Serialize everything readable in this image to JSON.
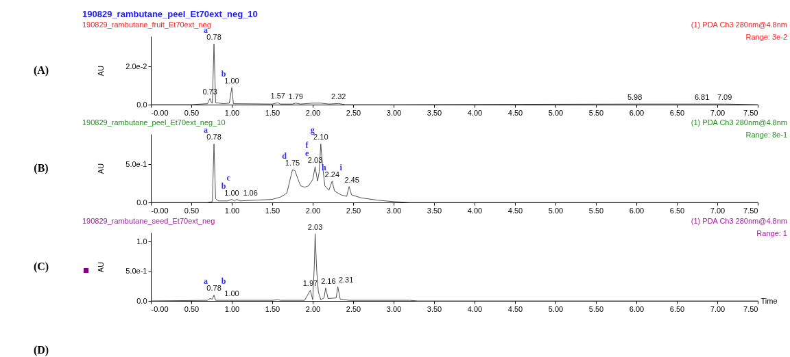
{
  "chart_data": [
    {
      "type": "line",
      "title": "190829_rambutane_peel_Et70ext_neg_10",
      "subtitle": "190829_rambutane_fruit_Et70ext_neg",
      "ylabel": "AU",
      "color": "#505050",
      "x": [
        0,
        0.5,
        0.7,
        0.73,
        0.75,
        0.76,
        0.78,
        0.8,
        0.9,
        0.97,
        1.0,
        1.02,
        1.5,
        1.57,
        1.6,
        1.75,
        1.79,
        1.85,
        2.0,
        2.1,
        2.2,
        2.32,
        2.4,
        3.0,
        5.98,
        6.81,
        7.09,
        7.5
      ],
      "values": [
        0,
        0,
        0.0005,
        0.0033,
        0.001,
        0.0008,
        0.032,
        0.001,
        0.0005,
        0.0008,
        0.009,
        0.0005,
        0.0003,
        0.001,
        0.0003,
        0.0003,
        0.0008,
        0.0003,
        0.0008,
        0.0008,
        0.0003,
        0.0006,
        0,
        0,
        0.0003,
        0.0003,
        0.0003,
        0
      ],
      "xlim": [
        0,
        7.5
      ],
      "ylim": [
        0,
        0.036
      ],
      "xticks": [
        {
          "value": 0,
          "label": "-0.00"
        },
        {
          "value": 0.5,
          "label": "0.50"
        },
        {
          "value": 1,
          "label": "1.00"
        },
        {
          "value": 1.5,
          "label": "1.50"
        },
        {
          "value": 2,
          "label": "2.00"
        },
        {
          "value": 2.5,
          "label": "2.50"
        },
        {
          "value": 3,
          "label": "3.00"
        },
        {
          "value": 3.5,
          "label": "3.50"
        },
        {
          "value": 4,
          "label": "4.00"
        },
        {
          "value": 4.5,
          "label": "4.50"
        },
        {
          "value": 5,
          "label": "5.00"
        },
        {
          "value": 5.5,
          "label": "5.50"
        },
        {
          "value": 6,
          "label": "6.00"
        },
        {
          "value": 6.5,
          "label": "6.50"
        },
        {
          "value": 7,
          "label": "7.00"
        },
        {
          "value": 7.5,
          "label": "7.50"
        }
      ],
      "yticks": [
        {
          "value": 0,
          "label": "0.0"
        },
        {
          "value": 0.02,
          "label": "2.0e-2"
        }
      ],
      "annotations": [
        "(A)",
        "(1) PDA Ch3 280nm@4.8nm",
        "Range: 3e-2",
        {
          "text": "0.73",
          "x": 0.73,
          "y": 0.0033
        },
        {
          "text": "a",
          "x": 0.78,
          "y": 0.032
        },
        {
          "text": "0.78",
          "x": 0.78,
          "y": 0.032
        },
        {
          "text": "b",
          "x": 1.0,
          "y": 0.009
        },
        {
          "text": "1.00",
          "x": 1.0,
          "y": 0.009
        },
        {
          "text": "1.57",
          "x": 1.57,
          "y": 0.001
        },
        {
          "text": "1.79",
          "x": 1.79,
          "y": 0.0008
        },
        {
          "text": "2.32",
          "x": 2.32,
          "y": 0.0006
        },
        {
          "text": "5.98",
          "x": 5.98,
          "y": 0.0003
        },
        {
          "text": "6.81",
          "x": 6.81,
          "y": 0.0003
        },
        {
          "text": "7.09",
          "x": 7.09,
          "y": 0.0003
        }
      ]
    },
    {
      "type": "line",
      "subtitle": "190829_rambutane_peel_Et70ext_neg_10",
      "ylabel": "AU",
      "color": "#505050",
      "x": [
        0,
        0.7,
        0.76,
        0.78,
        0.8,
        0.83,
        0.95,
        1.0,
        1.03,
        1.06,
        1.1,
        1.3,
        1.5,
        1.6,
        1.68,
        1.72,
        1.75,
        1.78,
        1.82,
        1.85,
        1.9,
        1.95,
        2.0,
        2.03,
        2.06,
        2.08,
        2.1,
        2.12,
        2.15,
        2.2,
        2.24,
        2.27,
        2.35,
        2.42,
        2.45,
        2.48,
        2.6,
        2.8,
        3.0,
        3.2,
        7.5
      ],
      "values": [
        0,
        0,
        0.01,
        0.77,
        0.05,
        0.02,
        0.02,
        0.04,
        0.02,
        0.04,
        0.02,
        0.03,
        0.04,
        0.07,
        0.12,
        0.3,
        0.43,
        0.42,
        0.3,
        0.22,
        0.2,
        0.22,
        0.3,
        0.47,
        0.28,
        0.4,
        0.77,
        0.5,
        0.22,
        0.16,
        0.28,
        0.15,
        0.1,
        0.08,
        0.21,
        0.1,
        0.06,
        0.03,
        0.01,
        0,
        0
      ],
      "xlim": [
        0,
        7.5
      ],
      "ylim": [
        0,
        0.9
      ],
      "xticks": [
        {
          "value": 0,
          "label": "-0.00"
        },
        {
          "value": 0.5,
          "label": "0.50"
        },
        {
          "value": 1,
          "label": "1.00"
        },
        {
          "value": 1.5,
          "label": "1.50"
        },
        {
          "value": 2,
          "label": "2.00"
        },
        {
          "value": 2.5,
          "label": "2.50"
        },
        {
          "value": 3,
          "label": "3.00"
        },
        {
          "value": 3.5,
          "label": "3.50"
        },
        {
          "value": 4,
          "label": "4.00"
        },
        {
          "value": 4.5,
          "label": "4.50"
        },
        {
          "value": 5,
          "label": "5.00"
        },
        {
          "value": 5.5,
          "label": "5.50"
        },
        {
          "value": 6,
          "label": "6.00"
        },
        {
          "value": 6.5,
          "label": "6.50"
        },
        {
          "value": 7,
          "label": "7.00"
        },
        {
          "value": 7.5,
          "label": "7.50"
        }
      ],
      "yticks": [
        {
          "value": 0,
          "label": "0.0"
        },
        {
          "value": 0.5,
          "label": "5.0e-1"
        }
      ],
      "annotations": [
        "(B)",
        "(1) PDA Ch3 280nm@4.8nm",
        "Range: 8e-1",
        {
          "text": "a",
          "x": 0.78,
          "y": 0.77
        },
        {
          "text": "0.78",
          "x": 0.78,
          "y": 0.77
        },
        {
          "text": "b",
          "x": 1.0,
          "y": 0.04
        },
        {
          "text": "1.00",
          "x": 1.0,
          "y": 0.04
        },
        {
          "text": "c",
          "x": 1.06,
          "y": 0.04
        },
        {
          "text": "1.06",
          "x": 1.06,
          "y": 0.04
        },
        {
          "text": "d",
          "x": 1.75,
          "y": 0.43
        },
        {
          "text": "1.75",
          "x": 1.75,
          "y": 0.43
        },
        {
          "text": "e",
          "x": 2.03,
          "y": 0.47
        },
        {
          "text": "2.03",
          "x": 2.03,
          "y": 0.47
        },
        {
          "text": "f",
          "x": 2.03,
          "y": 0.47
        },
        {
          "text": "g",
          "x": 2.1,
          "y": 0.77
        },
        {
          "text": "2.10",
          "x": 2.1,
          "y": 0.77
        },
        {
          "text": "h",
          "x": 2.24,
          "y": 0.28
        },
        {
          "text": "2.24",
          "x": 2.24,
          "y": 0.28
        },
        {
          "text": "i",
          "x": 2.45,
          "y": 0.21
        },
        {
          "text": "2.45",
          "x": 2.45,
          "y": 0.21
        }
      ]
    },
    {
      "type": "line",
      "subtitle": "190829_rambutane_seed_Et70ext_neg",
      "xlabel": "Time",
      "ylabel": "AU",
      "color": "#505050",
      "x": [
        0,
        0.7,
        0.73,
        0.76,
        0.78,
        0.8,
        1.0,
        1.5,
        1.57,
        1.6,
        1.9,
        1.97,
        2.0,
        2.02,
        2.03,
        2.05,
        2.07,
        2.1,
        2.14,
        2.16,
        2.19,
        2.29,
        2.31,
        2.34,
        2.45,
        3.2,
        3.3,
        7.5
      ],
      "values": [
        0,
        0.01,
        0.04,
        0.03,
        0.1,
        0.01,
        0.01,
        0.01,
        0.02,
        0.01,
        0.01,
        0.18,
        0.02,
        0.6,
        1.13,
        0.5,
        0.15,
        0.02,
        0.05,
        0.22,
        0.04,
        0.05,
        0.24,
        0.03,
        0.01,
        0.01,
        0,
        0
      ],
      "xlim": [
        0,
        7.5
      ],
      "ylim": [
        0,
        1.15
      ],
      "xticks": [
        {
          "value": 0,
          "label": "-0.00"
        },
        {
          "value": 0.5,
          "label": "0.50"
        },
        {
          "value": 1,
          "label": "1.00"
        },
        {
          "value": 1.5,
          "label": "1.50"
        },
        {
          "value": 2,
          "label": "2.00"
        },
        {
          "value": 2.5,
          "label": "2.50"
        },
        {
          "value": 3,
          "label": "3.00"
        },
        {
          "value": 3.5,
          "label": "3.50"
        },
        {
          "value": 4,
          "label": "4.00"
        },
        {
          "value": 4.5,
          "label": "4.50"
        },
        {
          "value": 5,
          "label": "5.00"
        },
        {
          "value": 5.5,
          "label": "5.50"
        },
        {
          "value": 6,
          "label": "6.00"
        },
        {
          "value": 6.5,
          "label": "6.50"
        },
        {
          "value": 7,
          "label": "7.00"
        },
        {
          "value": 7.5,
          "label": "7.50"
        }
      ],
      "yticks": [
        {
          "value": 0,
          "label": "0.0"
        },
        {
          "value": 0.5,
          "label": "5.0e-1"
        },
        {
          "value": 1,
          "label": "1.0"
        }
      ],
      "annotations": [
        "(C)",
        "(1) PDA Ch3 280nm@4.8nm",
        "Range: 1",
        "(D)",
        {
          "text": "a",
          "x": 0.78,
          "y": 0.1
        },
        {
          "text": "0.78",
          "x": 0.78,
          "y": 0.1
        },
        {
          "text": "b",
          "x": 1.0,
          "y": 0.01
        },
        {
          "text": "1.00",
          "x": 1.0,
          "y": 0.01
        },
        {
          "text": "1.97",
          "x": 1.97,
          "y": 0.18
        },
        {
          "text": "2.03",
          "x": 2.03,
          "y": 1.13
        },
        {
          "text": "2.16",
          "x": 2.16,
          "y": 0.22
        },
        {
          "text": "2.31",
          "x": 2.31,
          "y": 0.24
        }
      ]
    }
  ]
}
